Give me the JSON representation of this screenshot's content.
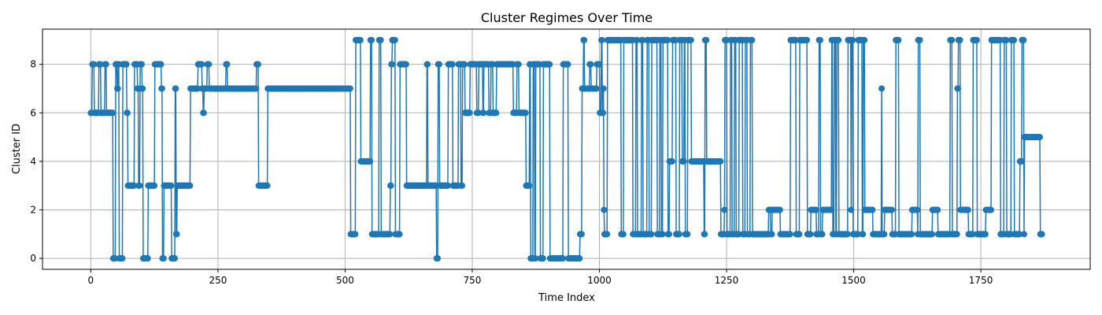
{
  "chart_data": {
    "type": "line",
    "title": "Cluster Regimes Over Time",
    "xlabel": "Time Index",
    "ylabel": "Cluster ID",
    "xlim": [
      -95,
      1965
    ],
    "ylim": [
      -0.45,
      9.45
    ],
    "xticks": [
      0,
      250,
      500,
      750,
      1000,
      1250,
      1500,
      1750
    ],
    "yticks": [
      0,
      2,
      4,
      6,
      8
    ],
    "xtick_labels": [
      "0",
      "250",
      "500",
      "750",
      "1000",
      "1250",
      "1500",
      "1750"
    ],
    "ytick_labels": [
      "0",
      "2",
      "4",
      "6",
      "8"
    ],
    "grid": true,
    "marker": "circle",
    "color": "#1f77b4",
    "segments": [
      [
        0,
        6
      ],
      [
        2,
        6
      ],
      [
        3,
        8
      ],
      [
        6,
        8
      ],
      [
        7,
        6
      ],
      [
        15,
        6
      ],
      [
        16,
        8
      ],
      [
        19,
        8
      ],
      [
        20,
        6
      ],
      [
        27,
        6
      ],
      [
        28,
        8
      ],
      [
        30,
        8
      ],
      [
        31,
        6
      ],
      [
        43,
        6
      ],
      [
        44,
        0
      ],
      [
        48,
        0
      ],
      [
        49,
        8
      ],
      [
        51,
        8
      ],
      [
        52,
        7
      ],
      [
        53,
        7
      ],
      [
        54,
        8
      ],
      [
        55,
        8
      ],
      [
        56,
        0
      ],
      [
        62,
        0
      ],
      [
        63,
        8
      ],
      [
        70,
        8
      ],
      [
        71,
        6
      ],
      [
        72,
        6
      ],
      [
        73,
        3
      ],
      [
        85,
        3
      ],
      [
        86,
        8
      ],
      [
        91,
        8
      ],
      [
        92,
        7
      ],
      [
        93,
        7
      ],
      [
        94,
        3
      ],
      [
        96,
        3
      ],
      [
        97,
        8
      ],
      [
        100,
        8
      ],
      [
        101,
        7
      ],
      [
        102,
        7
      ],
      [
        103,
        0
      ],
      [
        112,
        0
      ],
      [
        113,
        3
      ],
      [
        125,
        3
      ],
      [
        126,
        8
      ],
      [
        138,
        8
      ],
      [
        139,
        7
      ],
      [
        140,
        7
      ],
      [
        141,
        0
      ],
      [
        143,
        0
      ],
      [
        144,
        3
      ],
      [
        158,
        3
      ],
      [
        159,
        0
      ],
      [
        165,
        0
      ],
      [
        166,
        7
      ],
      [
        167,
        7
      ],
      [
        168,
        1
      ],
      [
        169,
        1
      ],
      [
        170,
        3
      ],
      [
        195,
        3
      ],
      [
        196,
        7
      ],
      [
        210,
        7
      ],
      [
        211,
        8
      ],
      [
        218,
        8
      ],
      [
        219,
        7
      ],
      [
        220,
        7
      ],
      [
        221,
        6
      ],
      [
        222,
        6
      ],
      [
        223,
        7
      ],
      [
        228,
        7
      ],
      [
        229,
        8
      ],
      [
        232,
        8
      ],
      [
        233,
        7
      ],
      [
        265,
        7
      ],
      [
        266,
        8
      ],
      [
        268,
        8
      ],
      [
        269,
        7
      ],
      [
        325,
        7
      ],
      [
        326,
        8
      ],
      [
        329,
        8
      ],
      [
        330,
        3
      ],
      [
        347,
        3
      ],
      [
        348,
        7
      ],
      [
        510,
        7
      ],
      [
        511,
        1
      ],
      [
        520,
        1
      ],
      [
        521,
        9
      ],
      [
        530,
        9
      ],
      [
        531,
        4
      ],
      [
        549,
        4
      ],
      [
        550,
        9
      ],
      [
        552,
        9
      ],
      [
        553,
        1
      ],
      [
        566,
        1
      ],
      [
        567,
        9
      ],
      [
        570,
        9
      ],
      [
        571,
        1
      ],
      [
        588,
        1
      ],
      [
        589,
        3
      ],
      [
        590,
        3
      ],
      [
        591,
        8
      ],
      [
        592,
        8
      ],
      [
        593,
        9
      ],
      [
        598,
        9
      ],
      [
        599,
        1
      ],
      [
        607,
        1
      ],
      [
        608,
        8
      ],
      [
        620,
        8
      ],
      [
        621,
        3
      ],
      [
        660,
        3
      ],
      [
        661,
        8
      ],
      [
        662,
        8
      ],
      [
        663,
        3
      ],
      [
        679,
        3
      ],
      [
        680,
        0
      ],
      [
        682,
        0
      ],
      [
        683,
        8
      ],
      [
        685,
        8
      ],
      [
        686,
        3
      ],
      [
        702,
        3
      ],
      [
        703,
        8
      ],
      [
        711,
        8
      ],
      [
        712,
        3
      ],
      [
        722,
        3
      ],
      [
        723,
        8
      ],
      [
        727,
        8
      ],
      [
        728,
        3
      ],
      [
        730,
        3
      ],
      [
        731,
        8
      ],
      [
        735,
        8
      ],
      [
        736,
        6
      ],
      [
        745,
        6
      ],
      [
        746,
        8
      ],
      [
        758,
        8
      ],
      [
        759,
        6
      ],
      [
        762,
        6
      ],
      [
        763,
        8
      ],
      [
        770,
        8
      ],
      [
        771,
        6
      ],
      [
        772,
        6
      ],
      [
        773,
        8
      ],
      [
        782,
        8
      ],
      [
        783,
        6
      ],
      [
        786,
        6
      ],
      [
        787,
        8
      ],
      [
        790,
        8
      ],
      [
        791,
        6
      ],
      [
        797,
        6
      ],
      [
        798,
        8
      ],
      [
        830,
        8
      ],
      [
        831,
        6
      ],
      [
        837,
        6
      ],
      [
        838,
        8
      ],
      [
        841,
        8
      ],
      [
        842,
        6
      ],
      [
        855,
        6
      ],
      [
        856,
        3
      ],
      [
        862,
        3
      ],
      [
        863,
        8
      ],
      [
        864,
        8
      ],
      [
        865,
        0
      ],
      [
        869,
        0
      ],
      [
        870,
        8
      ],
      [
        872,
        8
      ],
      [
        873,
        0
      ],
      [
        874,
        0
      ],
      [
        875,
        8
      ],
      [
        883,
        8
      ],
      [
        884,
        0
      ],
      [
        889,
        0
      ],
      [
        890,
        8
      ],
      [
        902,
        8
      ],
      [
        903,
        0
      ],
      [
        928,
        0
      ],
      [
        929,
        8
      ],
      [
        938,
        8
      ],
      [
        939,
        0
      ],
      [
        961,
        0
      ],
      [
        962,
        1
      ],
      [
        965,
        1
      ],
      [
        966,
        7
      ],
      [
        968,
        7
      ],
      [
        969,
        9
      ],
      [
        970,
        9
      ],
      [
        971,
        7
      ],
      [
        980,
        7
      ],
      [
        981,
        8
      ],
      [
        983,
        8
      ],
      [
        984,
        7
      ],
      [
        994,
        7
      ],
      [
        995,
        8
      ],
      [
        1000,
        8
      ],
      [
        1001,
        6
      ],
      [
        1003,
        6
      ],
      [
        1004,
        9
      ],
      [
        1005,
        9
      ],
      [
        1006,
        6
      ],
      [
        1007,
        6
      ],
      [
        1008,
        7
      ],
      [
        1009,
        2
      ],
      [
        1010,
        1
      ],
      [
        1015,
        1
      ],
      [
        1016,
        9
      ],
      [
        1042,
        9
      ],
      [
        1043,
        1
      ],
      [
        1047,
        1
      ],
      [
        1048,
        9
      ],
      [
        1065,
        9
      ],
      [
        1066,
        1
      ],
      [
        1071,
        1
      ],
      [
        1072,
        9
      ],
      [
        1074,
        9
      ],
      [
        1075,
        1
      ],
      [
        1082,
        1
      ],
      [
        1083,
        9
      ],
      [
        1085,
        9
      ],
      [
        1086,
        1
      ],
      [
        1093,
        1
      ],
      [
        1094,
        9
      ],
      [
        1097,
        9
      ],
      [
        1098,
        1
      ],
      [
        1102,
        1
      ],
      [
        1103,
        9
      ],
      [
        1113,
        9
      ],
      [
        1114,
        1
      ],
      [
        1118,
        1
      ],
      [
        1119,
        9
      ],
      [
        1121,
        9
      ],
      [
        1122,
        1
      ],
      [
        1124,
        1
      ],
      [
        1125,
        9
      ],
      [
        1134,
        9
      ],
      [
        1135,
        1
      ],
      [
        1137,
        1
      ],
      [
        1138,
        4
      ],
      [
        1143,
        4
      ],
      [
        1144,
        9
      ],
      [
        1150,
        9
      ],
      [
        1151,
        1
      ],
      [
        1157,
        1
      ],
      [
        1158,
        9
      ],
      [
        1162,
        9
      ],
      [
        1163,
        4
      ],
      [
        1166,
        4
      ],
      [
        1167,
        9
      ],
      [
        1168,
        9
      ],
      [
        1169,
        1
      ],
      [
        1173,
        1
      ],
      [
        1174,
        9
      ],
      [
        1180,
        9
      ],
      [
        1181,
        4
      ],
      [
        1205,
        4
      ],
      [
        1206,
        1
      ],
      [
        1207,
        1
      ],
      [
        1208,
        9
      ],
      [
        1210,
        9
      ],
      [
        1211,
        4
      ],
      [
        1238,
        4
      ],
      [
        1239,
        1
      ],
      [
        1245,
        1
      ],
      [
        1246,
        2
      ],
      [
        1247,
        9
      ],
      [
        1250,
        9
      ],
      [
        1251,
        1
      ],
      [
        1257,
        1
      ],
      [
        1258,
        9
      ],
      [
        1260,
        9
      ],
      [
        1261,
        1
      ],
      [
        1265,
        1
      ],
      [
        1266,
        9
      ],
      [
        1268,
        9
      ],
      [
        1269,
        1
      ],
      [
        1274,
        1
      ],
      [
        1275,
        9
      ],
      [
        1281,
        9
      ],
      [
        1282,
        1
      ],
      [
        1286,
        1
      ],
      [
        1287,
        9
      ],
      [
        1290,
        9
      ],
      [
        1291,
        1
      ],
      [
        1296,
        1
      ],
      [
        1297,
        9
      ],
      [
        1300,
        9
      ],
      [
        1301,
        1
      ],
      [
        1332,
        1
      ],
      [
        1333,
        2
      ],
      [
        1336,
        2
      ],
      [
        1337,
        1
      ],
      [
        1339,
        1
      ],
      [
        1340,
        2
      ],
      [
        1355,
        2
      ],
      [
        1356,
        1
      ],
      [
        1375,
        1
      ],
      [
        1376,
        9
      ],
      [
        1386,
        9
      ],
      [
        1387,
        1
      ],
      [
        1393,
        1
      ],
      [
        1394,
        9
      ],
      [
        1408,
        9
      ],
      [
        1409,
        1
      ],
      [
        1415,
        1
      ],
      [
        1416,
        2
      ],
      [
        1426,
        2
      ],
      [
        1427,
        1
      ],
      [
        1431,
        1
      ],
      [
        1432,
        9
      ],
      [
        1434,
        9
      ],
      [
        1435,
        1
      ],
      [
        1438,
        1
      ],
      [
        1439,
        2
      ],
      [
        1456,
        2
      ],
      [
        1457,
        9
      ],
      [
        1458,
        9
      ],
      [
        1459,
        1
      ],
      [
        1461,
        1
      ],
      [
        1462,
        9
      ],
      [
        1464,
        9
      ],
      [
        1465,
        1
      ],
      [
        1466,
        1
      ],
      [
        1467,
        9
      ],
      [
        1470,
        9
      ],
      [
        1471,
        1
      ],
      [
        1488,
        1
      ],
      [
        1489,
        9
      ],
      [
        1494,
        9
      ],
      [
        1495,
        2
      ],
      [
        1496,
        9
      ],
      [
        1498,
        9
      ],
      [
        1499,
        1
      ],
      [
        1508,
        1
      ],
      [
        1509,
        9
      ],
      [
        1516,
        9
      ],
      [
        1517,
        1
      ],
      [
        1518,
        1
      ],
      [
        1519,
        9
      ],
      [
        1521,
        9
      ],
      [
        1522,
        2
      ],
      [
        1537,
        2
      ],
      [
        1538,
        1
      ],
      [
        1554,
        1
      ],
      [
        1555,
        7
      ],
      [
        1556,
        1
      ],
      [
        1560,
        1
      ],
      [
        1561,
        2
      ],
      [
        1575,
        2
      ],
      [
        1576,
        1
      ],
      [
        1582,
        1
      ],
      [
        1583,
        9
      ],
      [
        1588,
        9
      ],
      [
        1589,
        1
      ],
      [
        1614,
        1
      ],
      [
        1615,
        2
      ],
      [
        1625,
        2
      ],
      [
        1626,
        1
      ],
      [
        1627,
        9
      ],
      [
        1630,
        9
      ],
      [
        1631,
        1
      ],
      [
        1654,
        1
      ],
      [
        1655,
        2
      ],
      [
        1665,
        2
      ],
      [
        1666,
        1
      ],
      [
        1689,
        1
      ],
      [
        1690,
        9
      ],
      [
        1693,
        9
      ],
      [
        1694,
        1
      ],
      [
        1703,
        1
      ],
      [
        1704,
        7
      ],
      [
        1705,
        7
      ],
      [
        1706,
        9
      ],
      [
        1709,
        9
      ],
      [
        1710,
        2
      ],
      [
        1725,
        2
      ],
      [
        1726,
        1
      ],
      [
        1734,
        1
      ],
      [
        1735,
        9
      ],
      [
        1742,
        9
      ],
      [
        1743,
        1
      ],
      [
        1759,
        1
      ],
      [
        1760,
        2
      ],
      [
        1770,
        2
      ],
      [
        1771,
        9
      ],
      [
        1788,
        9
      ],
      [
        1789,
        1
      ],
      [
        1795,
        1
      ],
      [
        1796,
        9
      ],
      [
        1800,
        9
      ],
      [
        1801,
        1
      ],
      [
        1809,
        1
      ],
      [
        1810,
        9
      ],
      [
        1815,
        9
      ],
      [
        1816,
        1
      ],
      [
        1826,
        1
      ],
      [
        1827,
        4
      ],
      [
        1830,
        4
      ],
      [
        1831,
        9
      ],
      [
        1834,
        9
      ],
      [
        1835,
        1
      ],
      [
        1836,
        5
      ],
      [
        1866,
        5
      ],
      [
        1867,
        1
      ],
      [
        1870,
        1
      ]
    ]
  }
}
